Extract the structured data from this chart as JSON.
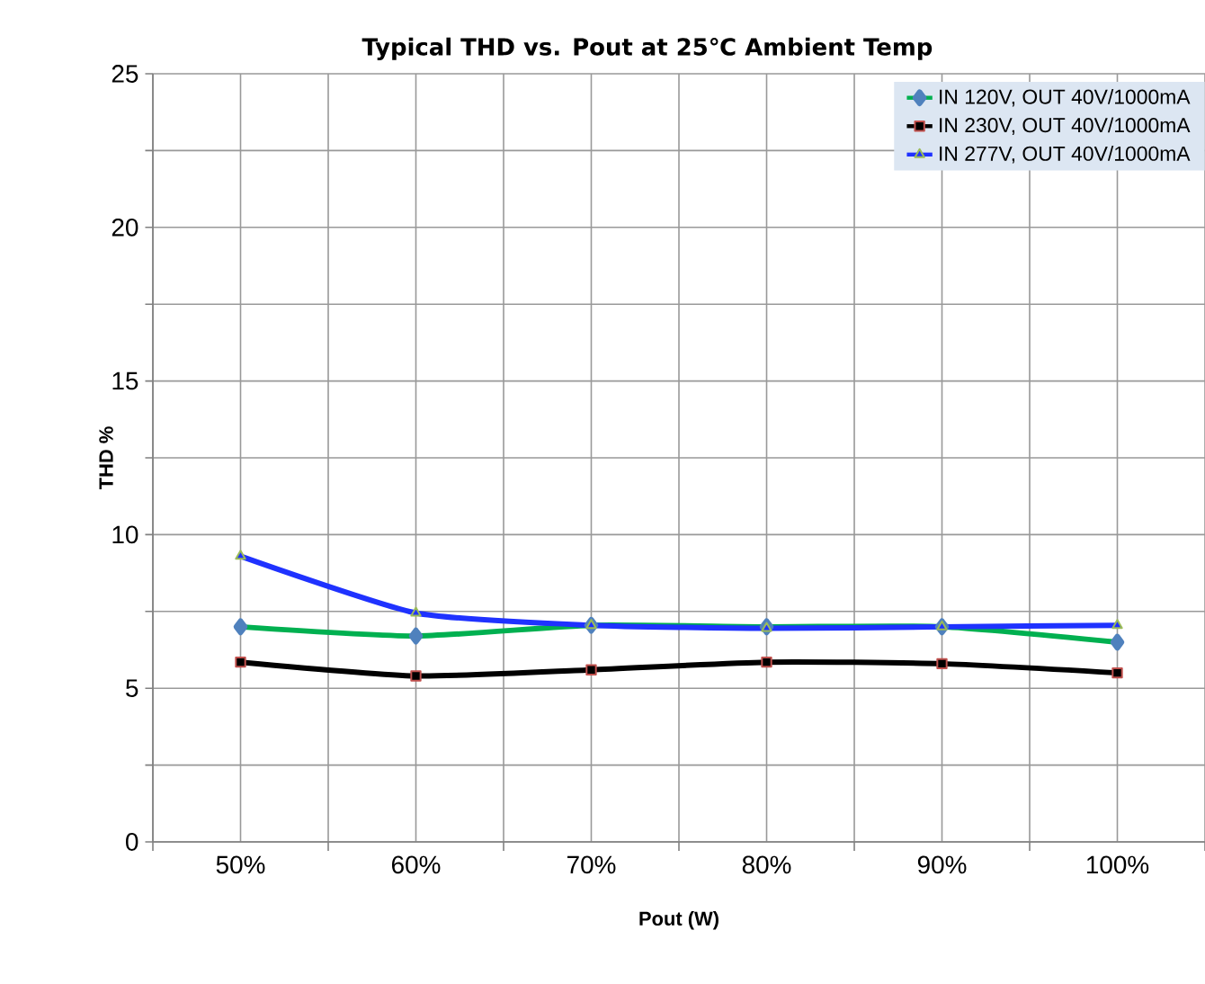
{
  "chart_data": {
    "type": "line",
    "title": "Typical THD vs. Pout at 25℃  Ambient Temp",
    "xlabel": "Pout (W)",
    "ylabel": "THD %",
    "categories": [
      "50%",
      "60%",
      "70%",
      "80%",
      "90%",
      "100%"
    ],
    "series": [
      {
        "name": "IN 120V, OUT 40V/1000mA",
        "color": "#00b050",
        "marker": "diamond",
        "values": [
          7.0,
          6.7,
          7.05,
          7.0,
          7.0,
          6.5
        ]
      },
      {
        "name": "IN 230V, OUT 40V/1000mA",
        "color": "#000000",
        "marker": "square",
        "values": [
          5.85,
          5.4,
          5.6,
          5.85,
          5.8,
          5.5
        ]
      },
      {
        "name": "IN 277V, OUT 40V/1000mA",
        "color": "#1f32ff",
        "marker": "triangle",
        "values": [
          9.3,
          7.45,
          7.05,
          6.95,
          7.0,
          7.05
        ]
      }
    ],
    "ylim": [
      0,
      25
    ],
    "yticks": [
      0,
      {
        "value": 2.5,
        "label": null
      },
      5,
      {
        "value": 7.5,
        "label": null
      },
      10,
      {
        "value": 12.5,
        "label": null
      },
      15,
      {
        "value": 17.5,
        "label": null
      },
      20,
      {
        "value": 22.5,
        "label": null
      },
      25
    ],
    "grid": true,
    "legend": "top right",
    "line_style": "solid"
  }
}
